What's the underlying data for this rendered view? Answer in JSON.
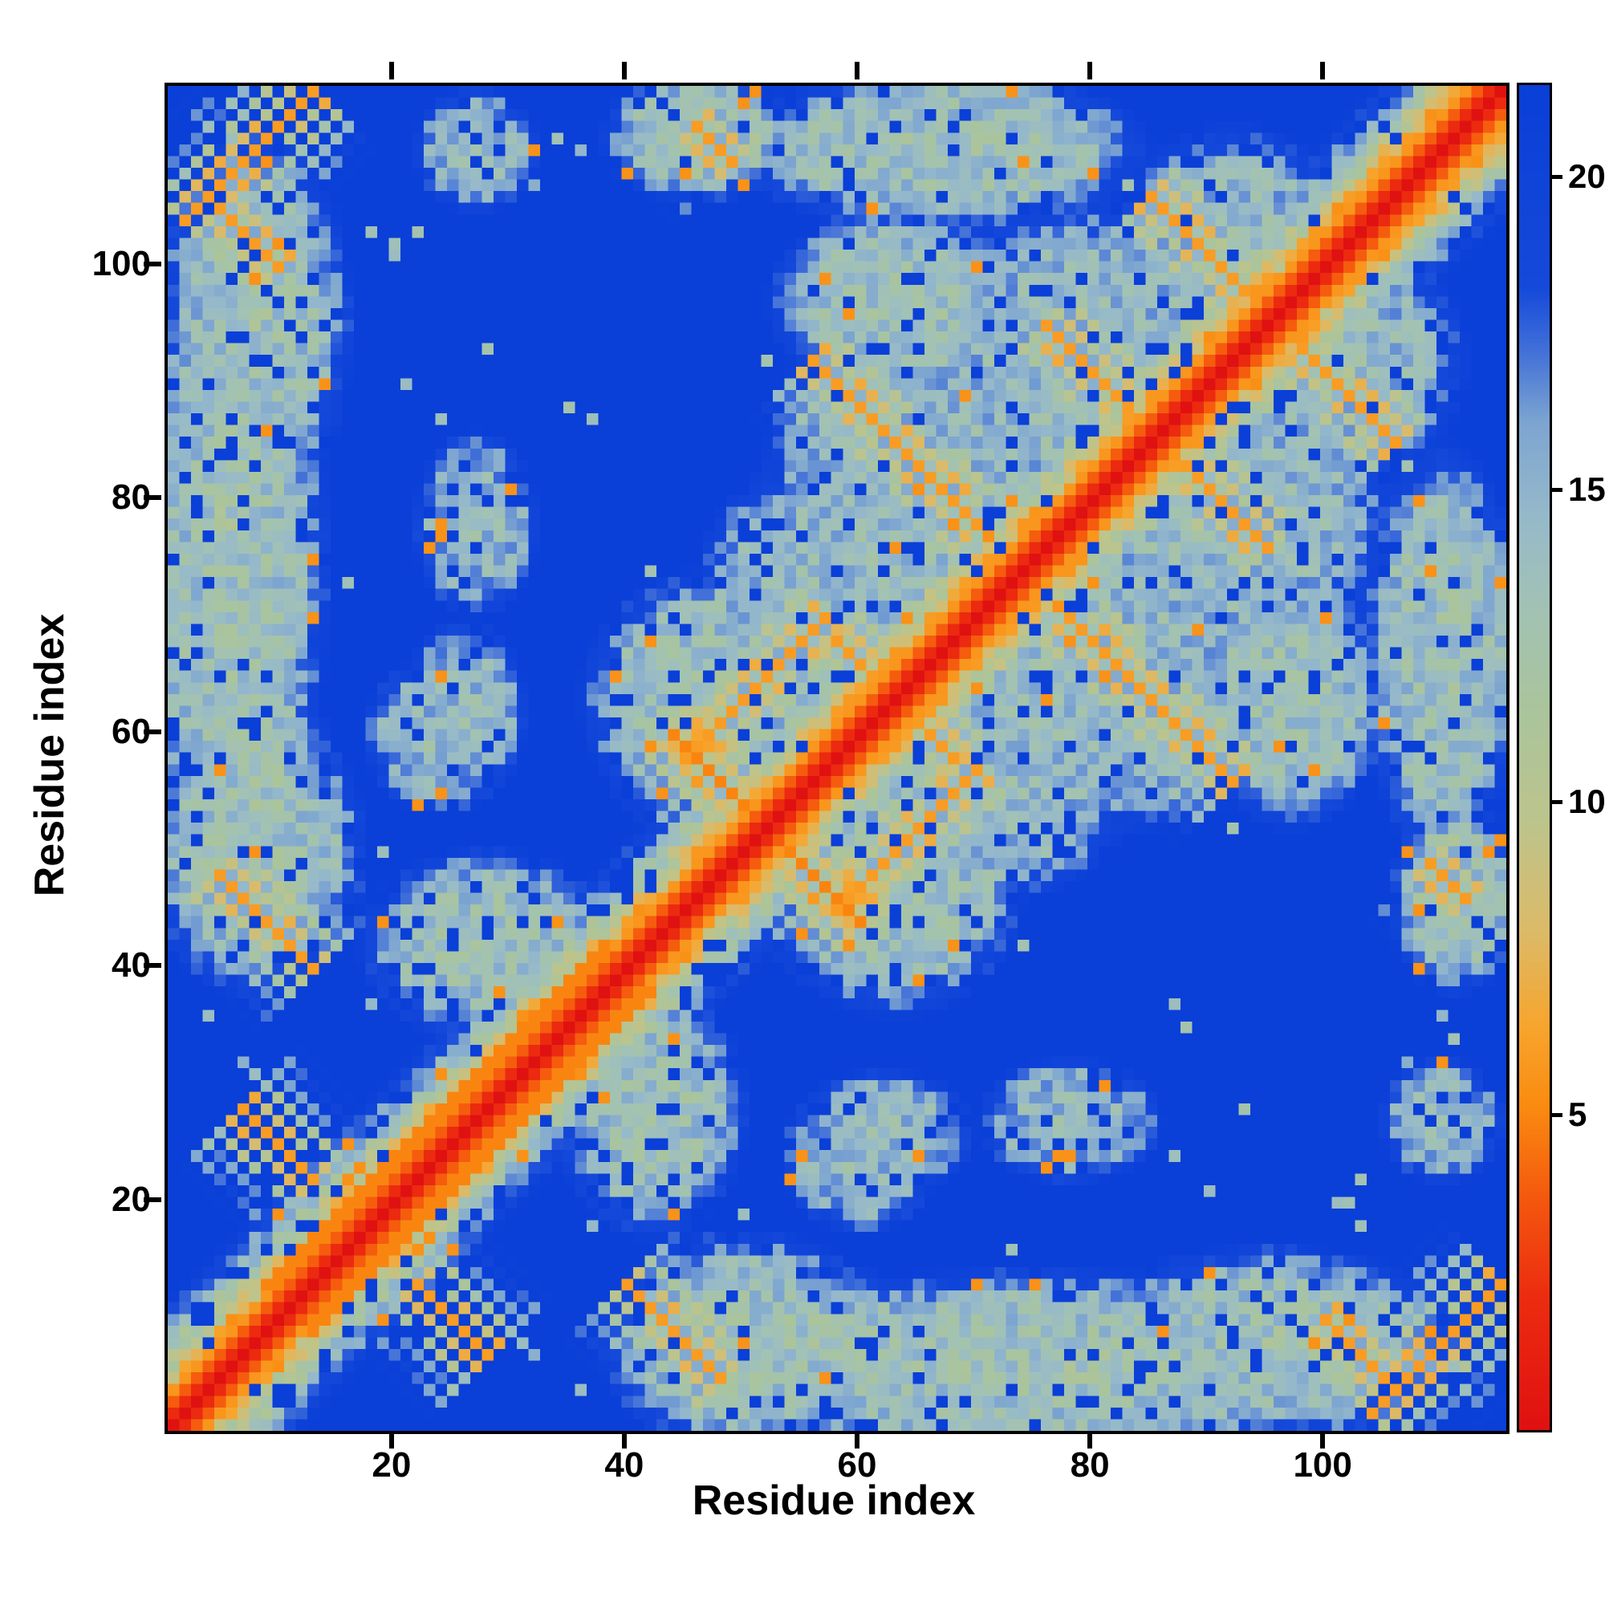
{
  "figure": {
    "background": "#ffffff",
    "frame_color": "#000000"
  },
  "chart_data": {
    "type": "heatmap",
    "title": "",
    "xlabel": "Residue index",
    "ylabel": "Residue index",
    "n_residues": 115,
    "x_range": [
      1,
      115
    ],
    "y_range": [
      1,
      115
    ],
    "value_range": [
      0,
      21.5
    ],
    "x_ticks": [
      20,
      40,
      60,
      80,
      100
    ],
    "y_ticks": [
      20,
      40,
      60,
      80,
      100
    ],
    "colorbar_ticks": [
      5,
      10,
      15,
      20
    ],
    "legend": "colorbar-right",
    "grid": false,
    "background_value": 21.5,
    "diagonal": {
      "slope": 1.9,
      "halfwidth": 12
    },
    "colormap_stops": [
      [
        0.0,
        "#e01111"
      ],
      [
        0.1,
        "#ec2d10"
      ],
      [
        0.17,
        "#f4570e"
      ],
      [
        0.24,
        "#fa8b10"
      ],
      [
        0.3,
        "#f7a52e"
      ],
      [
        0.37,
        "#dcba68"
      ],
      [
        0.45,
        "#bdc48c"
      ],
      [
        0.54,
        "#a9c49d"
      ],
      [
        0.61,
        "#a2c2b4"
      ],
      [
        0.68,
        "#96b9ca"
      ],
      [
        0.75,
        "#7da5d0"
      ],
      [
        0.8,
        "#4573d8"
      ],
      [
        0.85,
        "#1549da"
      ],
      [
        1.0,
        "#0a3fd8"
      ]
    ],
    "contact_features": [
      {
        "type": "band",
        "r0": 13,
        "r1": 38,
        "value": 5
      },
      {
        "type": "anti",
        "i": 44,
        "j": 60,
        "len": 17,
        "value": 5
      },
      {
        "type": "para",
        "i": 45,
        "j": 58,
        "len": 13,
        "value": 6
      },
      {
        "type": "anti",
        "i": 58,
        "j": 68,
        "len": 11,
        "value": 6
      },
      {
        "type": "anti",
        "i": 56,
        "j": 92,
        "len": 15,
        "value": 6
      },
      {
        "type": "anti",
        "i": 76,
        "j": 95,
        "len": 15,
        "value": 6
      },
      {
        "type": "anti",
        "i": 85,
        "j": 106,
        "len": 12,
        "value": 6
      },
      {
        "type": "para",
        "i": 2,
        "j": 104,
        "len": 12,
        "value": 6
      },
      {
        "type": "anti",
        "i": 7,
        "j": 28,
        "len": 7,
        "value": 6
      },
      {
        "type": "anti",
        "i": 40,
        "j": 13,
        "len": 9,
        "value": 6
      },
      {
        "type": "anti",
        "i": 100,
        "j": 10,
        "len": 6,
        "value": 6
      },
      {
        "type": "anti",
        "i": 109,
        "j": 49,
        "len": 4,
        "value": 6
      },
      {
        "type": "blob",
        "i": 6,
        "j": 75,
        "ri": 6,
        "rj": 22,
        "value": 13
      },
      {
        "type": "blob",
        "i": 8,
        "j": 50,
        "ri": 7,
        "rj": 9,
        "value": 13
      },
      {
        "type": "blob",
        "i": 28,
        "j": 42,
        "ri": 8,
        "rj": 6,
        "value": 13
      },
      {
        "type": "blob",
        "i": 24,
        "j": 60,
        "ri": 5,
        "rj": 5,
        "value": 14
      },
      {
        "type": "blob",
        "i": 47,
        "j": 63,
        "ri": 8,
        "rj": 8,
        "value": 13
      },
      {
        "type": "blob",
        "i": 70,
        "j": 55,
        "ri": 10,
        "rj": 7,
        "value": 13.5
      },
      {
        "type": "blob",
        "i": 80,
        "j": 65,
        "ri": 14,
        "rj": 10,
        "value": 13.5
      },
      {
        "type": "blob",
        "i": 90,
        "j": 80,
        "ri": 12,
        "rj": 12,
        "value": 13.5
      },
      {
        "type": "blob",
        "i": 100,
        "j": 92,
        "ri": 9,
        "rj": 8,
        "value": 13.5
      },
      {
        "type": "blob",
        "i": 63,
        "j": 97,
        "ri": 8,
        "rj": 6,
        "value": 13
      },
      {
        "type": "blob",
        "i": 67,
        "j": 110,
        "ri": 13,
        "rj": 5,
        "value": 13
      },
      {
        "type": "blob",
        "i": 55,
        "j": 8,
        "ri": 9,
        "rj": 5,
        "value": 13
      },
      {
        "type": "blob",
        "i": 95,
        "j": 8,
        "ri": 11,
        "rj": 5,
        "value": 13
      },
      {
        "type": "blob",
        "i": 8,
        "j": 95,
        "ri": 6,
        "rj": 12,
        "value": 13
      },
      {
        "type": "blob",
        "i": 62,
        "j": 26,
        "ri": 6,
        "rj": 4,
        "value": 14
      },
      {
        "type": "blob",
        "i": 78,
        "j": 27,
        "ri": 6,
        "rj": 4,
        "value": 14
      },
      {
        "type": "blob",
        "i": 110,
        "j": 27,
        "ri": 4,
        "rj": 4,
        "value": 14
      },
      {
        "type": "blob",
        "i": 111,
        "j": 46,
        "ri": 4,
        "rj": 6,
        "value": 13
      }
    ],
    "noise": {
      "seed": 20,
      "speckle_green": 0.015,
      "hole_blue": 0.09,
      "speckle_orange": 0.012
    }
  }
}
